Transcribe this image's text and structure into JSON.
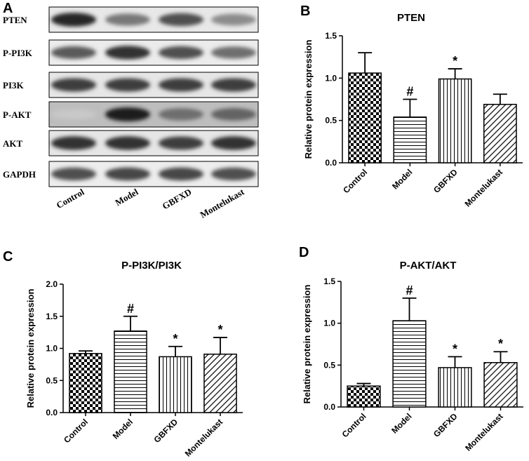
{
  "figure": {
    "panel_a": {
      "letter": "A",
      "rows": [
        "PTEN",
        "P-PI3K",
        "PI3K",
        "P-AKT",
        "AKT",
        "GAPDH"
      ],
      "lanes": [
        "Control",
        "Model",
        "GBFXD",
        "Montelukast"
      ]
    }
  },
  "chart_data": [
    {
      "panel": "B",
      "type": "bar",
      "title": "PTEN",
      "xlabel": "",
      "ylabel": "Relative protein expression",
      "categories": [
        "Control",
        "Model",
        "GBFXD",
        "Montelukast"
      ],
      "values": [
        1.06,
        0.54,
        0.99,
        0.69
      ],
      "errors": [
        0.24,
        0.21,
        0.12,
        0.12
      ],
      "significance": [
        "",
        "#",
        "*",
        ""
      ],
      "ylim": [
        0,
        1.5
      ],
      "yticks": [
        "0.0",
        "0.5",
        "1.0",
        "1.5"
      ],
      "patterns": [
        "checker",
        "hlines",
        "vlines",
        "diag"
      ],
      "grid": false
    },
    {
      "panel": "C",
      "type": "bar",
      "title": "P-PI3K/PI3K",
      "xlabel": "",
      "ylabel": "Relative protein expression",
      "categories": [
        "Control",
        "Model",
        "GBFXD",
        "Montelukast"
      ],
      "values": [
        0.92,
        1.27,
        0.87,
        0.91
      ],
      "errors": [
        0.04,
        0.23,
        0.16,
        0.26
      ],
      "significance": [
        "",
        "#",
        "*",
        "*"
      ],
      "ylim": [
        0,
        2.0
      ],
      "yticks": [
        "0.0",
        "0.5",
        "1.0",
        "1.5",
        "2.0"
      ],
      "patterns": [
        "checker",
        "hlines",
        "vlines",
        "diag"
      ],
      "grid": false
    },
    {
      "panel": "D",
      "type": "bar",
      "title": "P-AKT/AKT",
      "xlabel": "",
      "ylabel": "Relative protein expression",
      "categories": [
        "Control",
        "Model",
        "GBFXD",
        "Montelukast"
      ],
      "values": [
        0.25,
        1.03,
        0.47,
        0.53
      ],
      "errors": [
        0.03,
        0.27,
        0.13,
        0.13
      ],
      "significance": [
        "",
        "#",
        "*",
        "*"
      ],
      "ylim": [
        0,
        1.5
      ],
      "yticks": [
        "0.0",
        "0.5",
        "1.0",
        "1.5"
      ],
      "patterns": [
        "checker",
        "hlines",
        "vlines",
        "diag"
      ],
      "grid": false
    }
  ]
}
